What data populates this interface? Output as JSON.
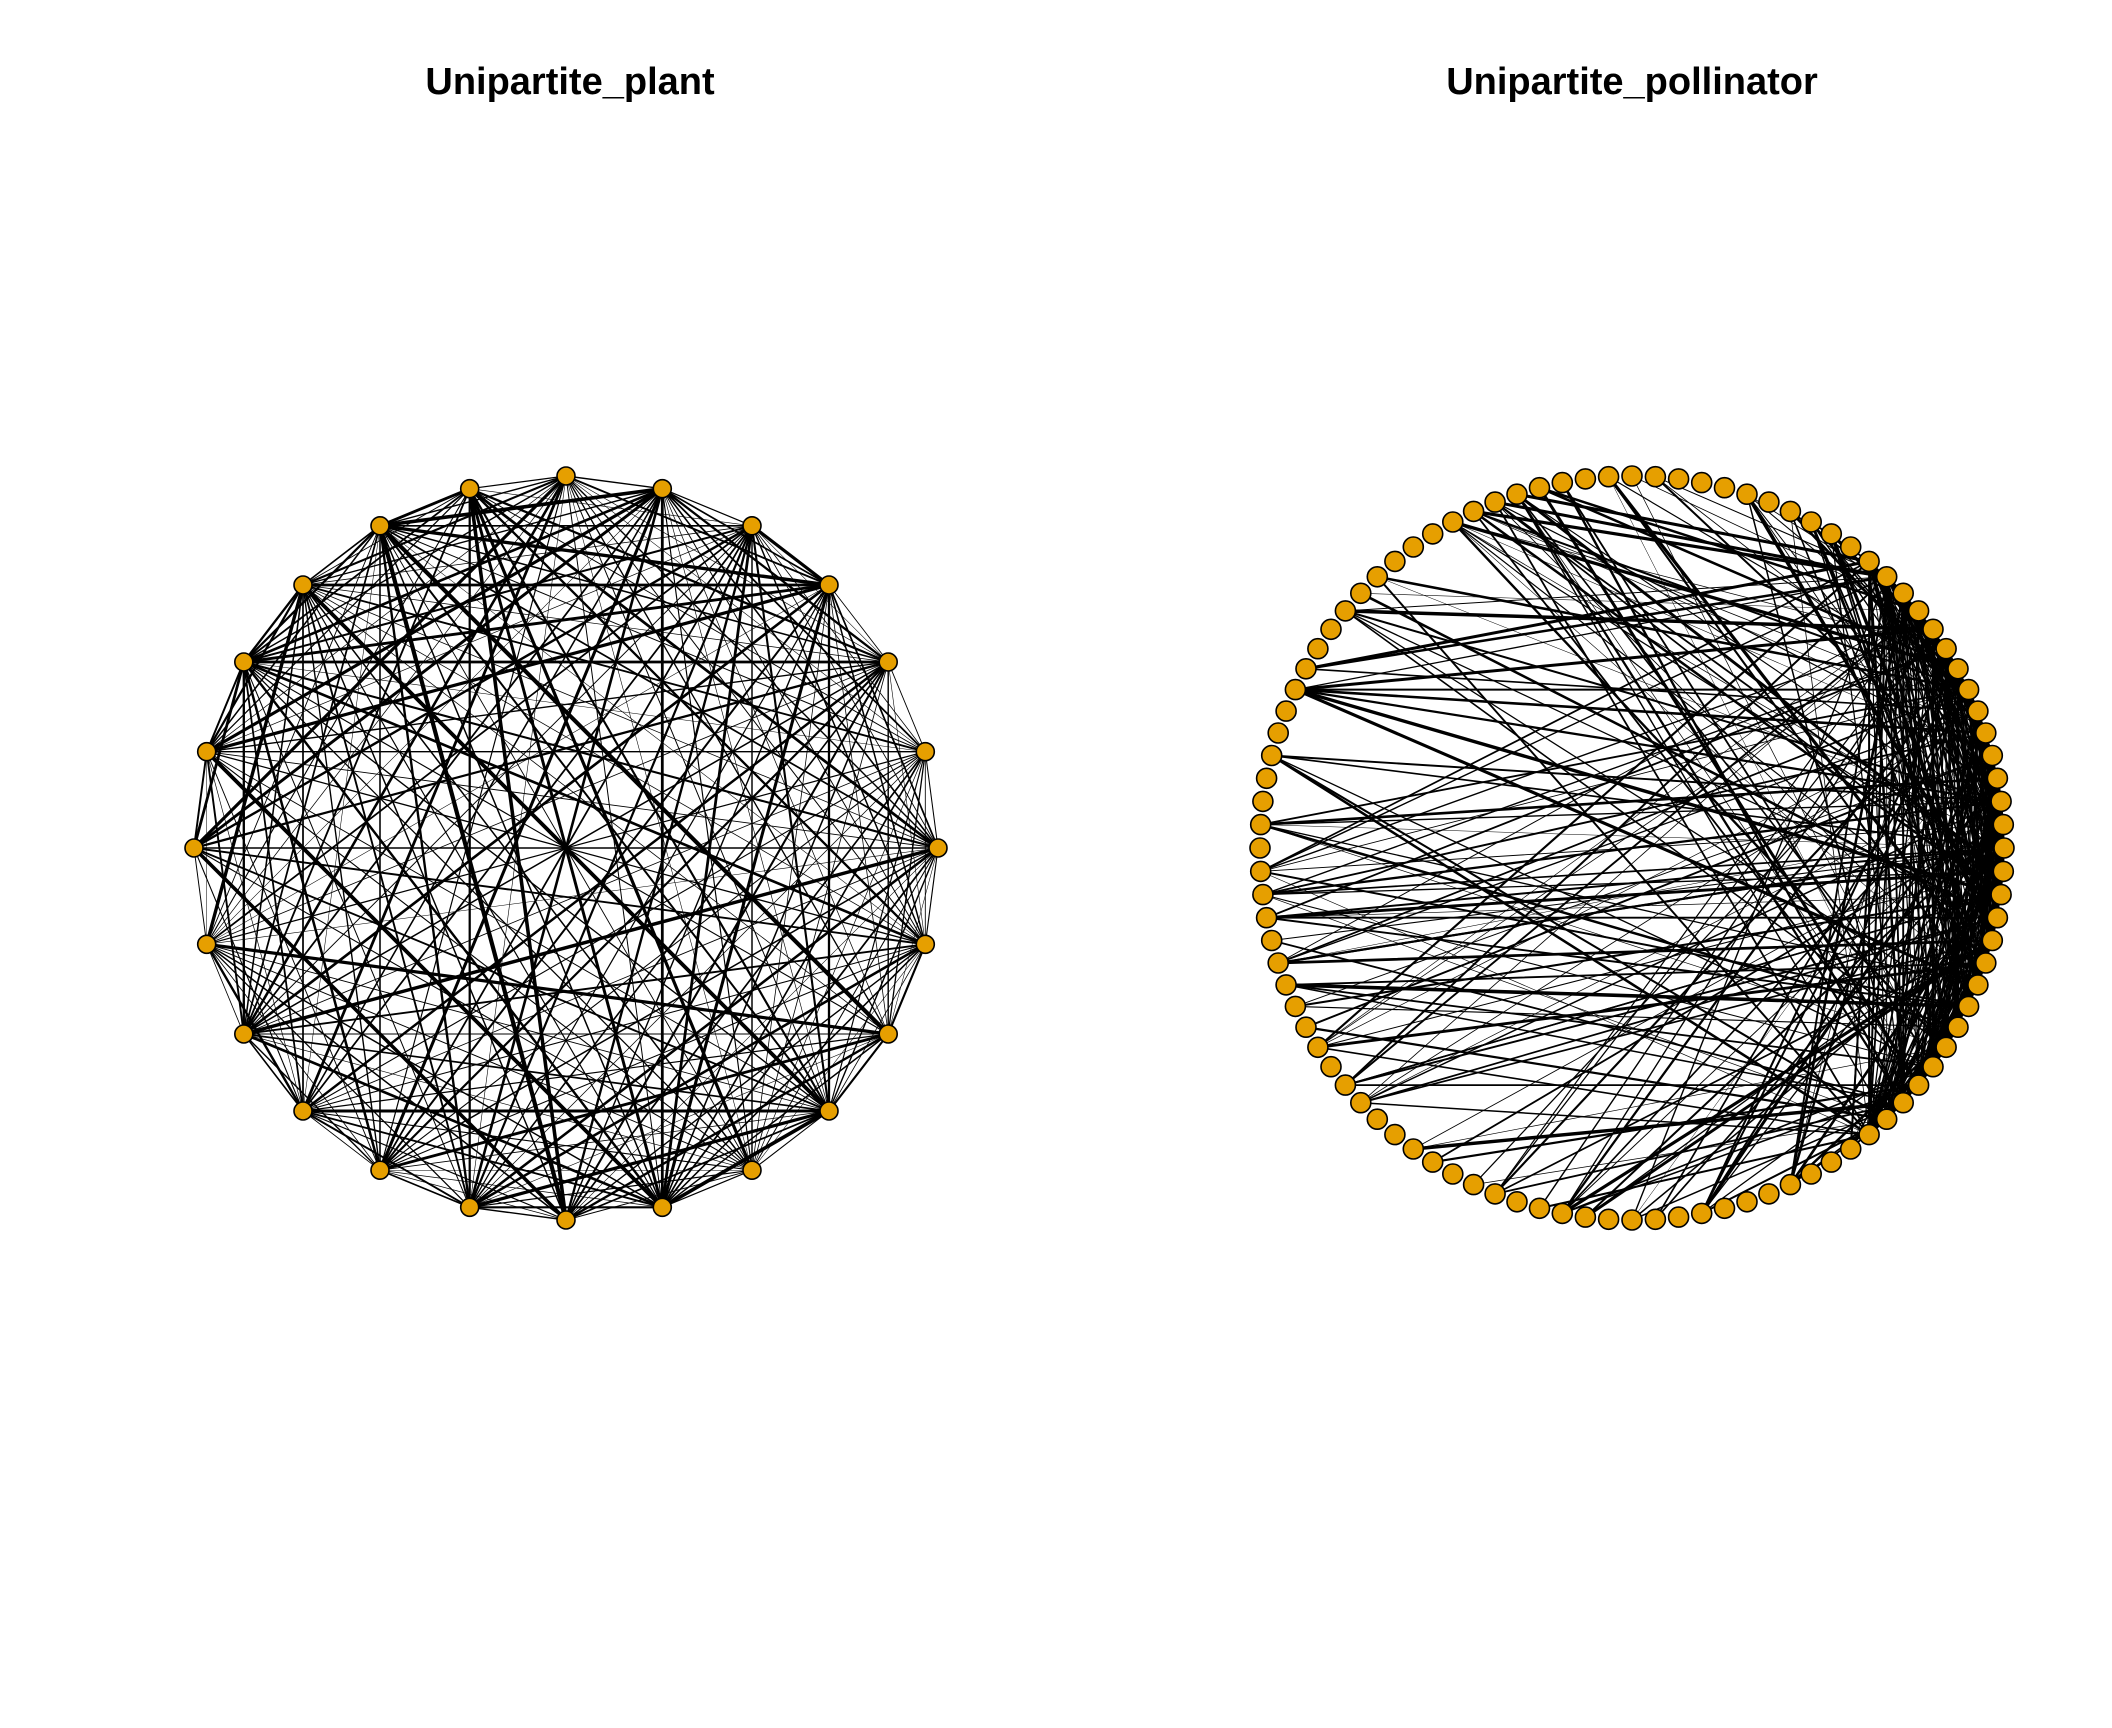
{
  "colors": {
    "background": "#ffffff",
    "node_fill": "#E69F00",
    "node_stroke": "#000000",
    "edge": "#000000"
  },
  "panels": [
    {
      "title": "Unipartite_plant",
      "layout": "circle",
      "node_count": 24,
      "node_shape": "circle",
      "edge_style": "weighted-lines"
    },
    {
      "title": "Unipartite_pollinator",
      "layout": "circle",
      "node_count": 100,
      "node_shape": "circle",
      "edge_style": "weighted-lines"
    }
  ]
}
